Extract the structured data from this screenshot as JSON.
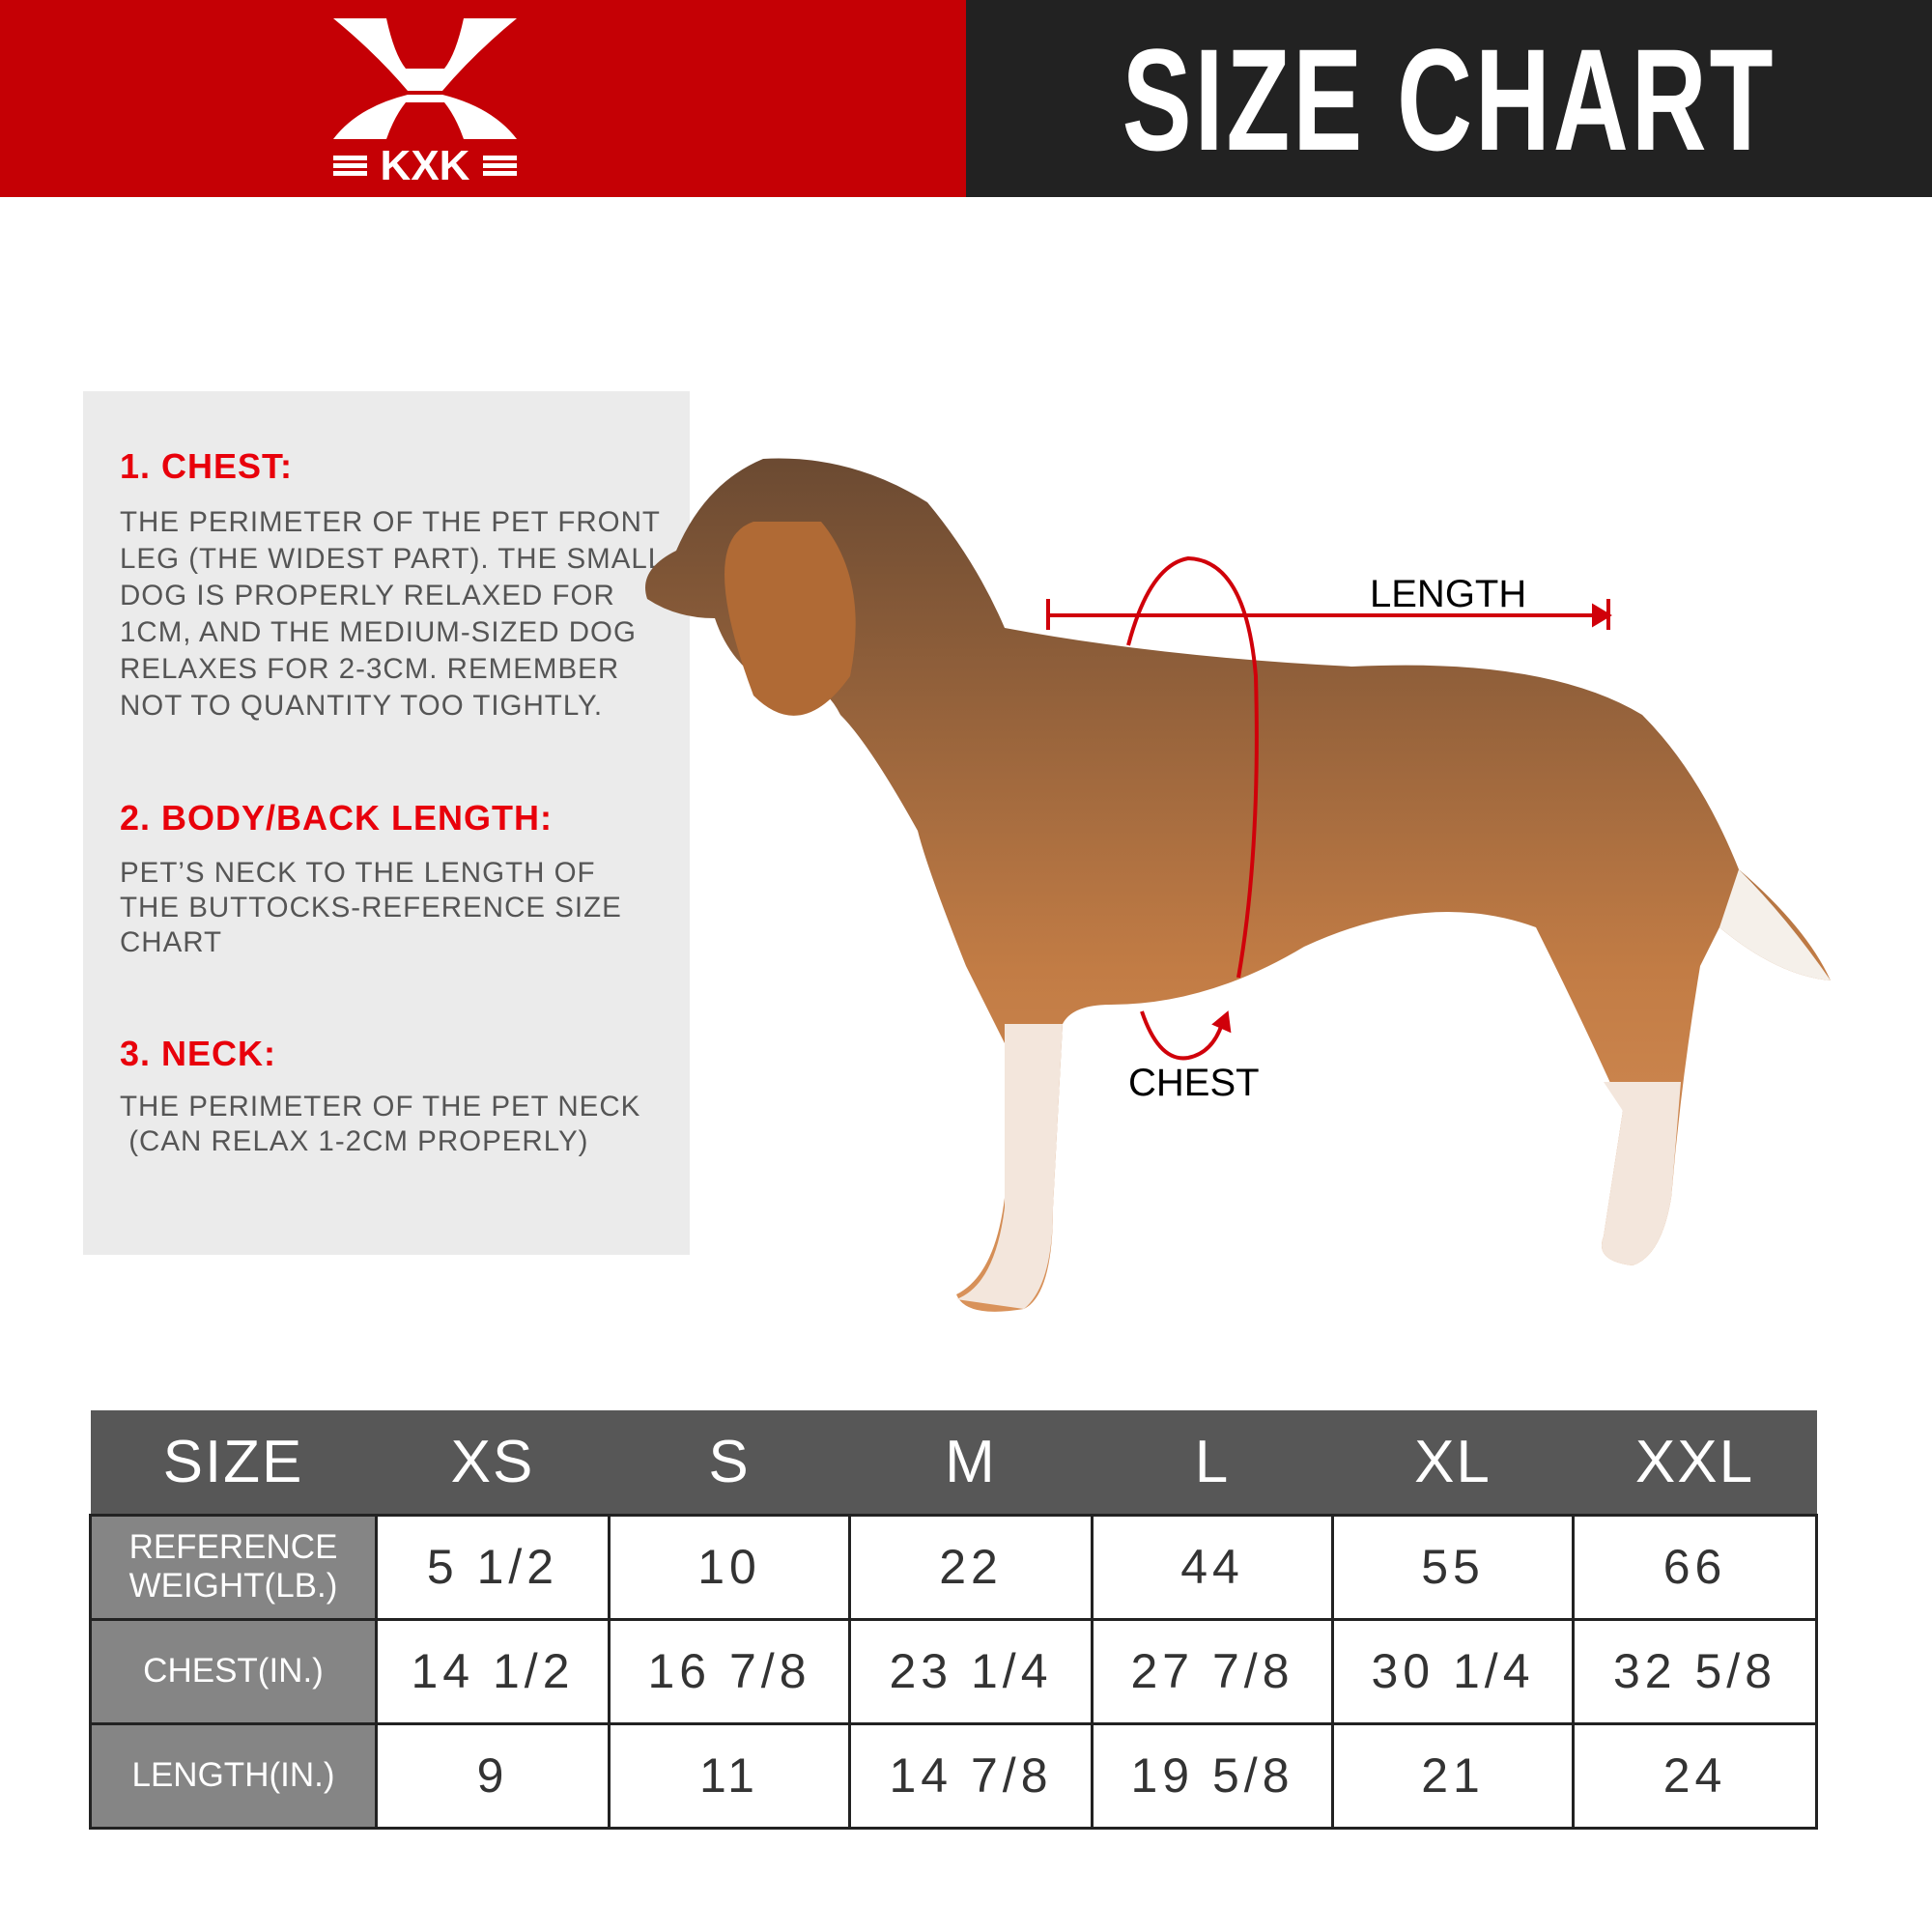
{
  "header": {
    "brand": "KXK",
    "title": "SIZE CHART",
    "brand_color": "#c50005",
    "title_bg": "#222222"
  },
  "guide": {
    "sections": [
      {
        "heading": "1. CHEST:",
        "lines": [
          "THE PERIMETER OF THE PET FRONT",
          "LEG (THE WIDEST PART). THE SMALL",
          "DOG IS PROPERLY RELAXED FOR",
          "1CM, AND THE MEDIUM-SIZED DOG",
          "RELAXES FOR 2-3CM. REMEMBER",
          "NOT TO QUANTITY TOO TIGHTLY."
        ]
      },
      {
        "heading": "2. BODY/BACK LENGTH:",
        "lines": [
          "PET’S NECK TO THE LENGTH OF",
          "THE BUTTOCKS-REFERENCE SIZE",
          "CHART"
        ]
      },
      {
        "heading": "3. NECK:",
        "lines": [
          "THE PERIMETER OF THE PET NECK",
          " (CAN RELAX 1-2CM PROPERLY)"
        ]
      }
    ]
  },
  "diagram": {
    "length_label": "LENGTH",
    "chest_label": "CHEST",
    "accent": "#d0000a"
  },
  "table": {
    "headers": [
      "SIZE",
      "XS",
      "S",
      "M",
      "L",
      "XL",
      "XXL"
    ],
    "rows": [
      {
        "label": "REFERENCE WEIGHT(LB.)",
        "values": [
          "5 1/2",
          "10",
          "22",
          "44",
          "55",
          "66"
        ]
      },
      {
        "label": "CHEST(IN.)",
        "values": [
          "14 1/2",
          "16 7/8",
          "23 1/4",
          "27 7/8",
          "30 1/4",
          "32 5/8"
        ]
      },
      {
        "label": "LENGTH(IN.)",
        "values": [
          "9",
          "11",
          "14 7/8",
          "19 5/8",
          "21",
          "24"
        ]
      }
    ]
  }
}
